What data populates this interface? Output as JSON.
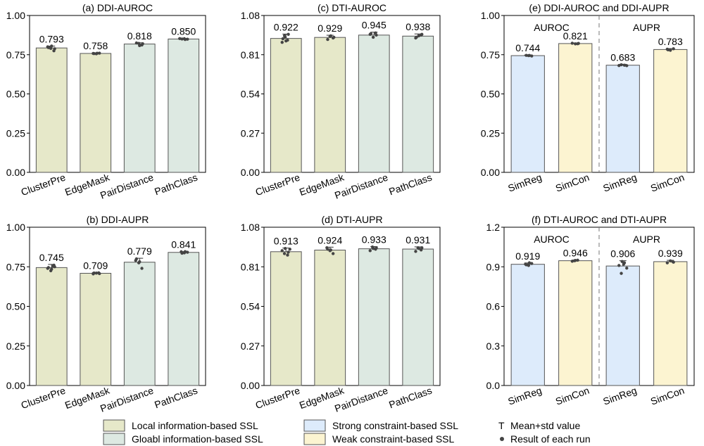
{
  "colors": {
    "local": "#e6e8c9",
    "global": "#dde9e2",
    "strong": "#ddebfb",
    "weak": "#fcf4d1",
    "bar_edge": "#555555",
    "dot": "#444444"
  },
  "chart_data": [
    {
      "id": "a",
      "type": "bar",
      "title": "(a) DDI-AUROC",
      "ylim": [
        0,
        1.0
      ],
      "yticks": [
        "0.00",
        "0.25",
        "0.50",
        "0.75",
        "1.00"
      ],
      "ytick_values": [
        0,
        0.25,
        0.5,
        0.75,
        1.0
      ],
      "categories": [
        "ClusterPre",
        "EdgeMask",
        "PairDistance",
        "PathClass"
      ],
      "values": [
        0.793,
        0.758,
        0.818,
        0.85
      ],
      "labels": [
        "0.793",
        "0.758",
        "0.818",
        "0.850"
      ],
      "std": [
        0.012,
        0.004,
        0.008,
        0.004
      ],
      "fills": [
        "local",
        "local",
        "global",
        "global"
      ],
      "runs": [
        [
          0.8,
          0.79,
          0.775,
          0.795,
          0.805,
          0.788,
          0.798
        ],
        [
          0.758,
          0.756,
          0.76,
          0.757,
          0.759
        ],
        [
          0.822,
          0.812,
          0.825,
          0.808,
          0.82
        ],
        [
          0.852,
          0.849,
          0.85,
          0.847,
          0.853
        ]
      ]
    },
    {
      "id": "b",
      "type": "bar",
      "title": "(b) DDI-AUPR",
      "ylim": [
        0,
        1.0
      ],
      "yticks": [
        "0.00",
        "0.25",
        "0.50",
        "0.75",
        "1.00"
      ],
      "ytick_values": [
        0,
        0.25,
        0.5,
        0.75,
        1.0
      ],
      "categories": [
        "ClusterPre",
        "EdgeMask",
        "PairDistance",
        "PathClass"
      ],
      "values": [
        0.745,
        0.709,
        0.779,
        0.841
      ],
      "labels": [
        "0.745",
        "0.709",
        "0.779",
        "0.841"
      ],
      "std": [
        0.02,
        0.005,
        0.025,
        0.005
      ],
      "fills": [
        "local",
        "local",
        "global",
        "global"
      ],
      "runs": [
        [
          0.755,
          0.74,
          0.725,
          0.76,
          0.745,
          0.735,
          0.75
        ],
        [
          0.712,
          0.705,
          0.71,
          0.707,
          0.711
        ],
        [
          0.79,
          0.775,
          0.74,
          0.8,
          0.782
        ],
        [
          0.845,
          0.838,
          0.842,
          0.836,
          0.846
        ]
      ]
    },
    {
      "id": "c",
      "type": "bar",
      "title": "(c) DTI-AUROC",
      "ylim": [
        0,
        1.08
      ],
      "yticks": [
        "0.00",
        "0.27",
        "0.54",
        "0.81",
        "1.08"
      ],
      "ytick_values": [
        0,
        0.27,
        0.54,
        0.81,
        1.08
      ],
      "categories": [
        "ClusterPre",
        "EdgeMask",
        "PairDistance",
        "PathClass"
      ],
      "values": [
        0.922,
        0.929,
        0.945,
        0.938
      ],
      "labels": [
        "0.922",
        "0.929",
        "0.945",
        "0.938"
      ],
      "std": [
        0.03,
        0.015,
        0.02,
        0.015
      ],
      "fills": [
        "local",
        "local",
        "global",
        "global"
      ],
      "runs": [
        [
          0.94,
          0.91,
          0.895,
          0.93,
          0.95,
          0.92,
          0.905
        ],
        [
          0.935,
          0.925,
          0.915,
          0.94,
          0.93
        ],
        [
          0.96,
          0.95,
          0.93,
          0.945,
          0.955
        ],
        [
          0.945,
          0.925,
          0.94,
          0.95,
          0.93
        ]
      ]
    },
    {
      "id": "d",
      "type": "bar",
      "title": "(d) DTI-AUPR",
      "ylim": [
        0,
        1.08
      ],
      "yticks": [
        "0.00",
        "0.27",
        "0.54",
        "0.81",
        "1.08"
      ],
      "ytick_values": [
        0,
        0.27,
        0.54,
        0.81,
        1.08
      ],
      "categories": [
        "ClusterPre",
        "EdgeMask",
        "PairDistance",
        "PathClass"
      ],
      "values": [
        0.913,
        0.924,
        0.933,
        0.931
      ],
      "labels": [
        "0.913",
        "0.924",
        "0.933",
        "0.931"
      ],
      "std": [
        0.025,
        0.02,
        0.015,
        0.015
      ],
      "fills": [
        "local",
        "local",
        "global",
        "global"
      ],
      "runs": [
        [
          0.93,
          0.9,
          0.89,
          0.92,
          0.935,
          0.91
        ],
        [
          0.94,
          0.92,
          0.9,
          0.93,
          0.925
        ],
        [
          0.945,
          0.93,
          0.92,
          0.935,
          0.94
        ],
        [
          0.94,
          0.925,
          0.915,
          0.935,
          0.94
        ]
      ]
    },
    {
      "id": "e",
      "type": "bar",
      "title": "(e) DDI-AUROC and DDI-AUPR",
      "ylim": [
        0,
        1.0
      ],
      "yticks": [
        "0.00",
        "0.25",
        "0.50",
        "0.75",
        "1.00"
      ],
      "ytick_values": [
        0,
        0.25,
        0.5,
        0.75,
        1.0
      ],
      "categories": [
        "SimReg",
        "SimCon",
        "SimReg",
        "SimCon"
      ],
      "group_labels": [
        "AUROC",
        "AUPR"
      ],
      "values": [
        0.744,
        0.821,
        0.683,
        0.783
      ],
      "labels": [
        "0.744",
        "0.821",
        "0.683",
        "0.783"
      ],
      "std": [
        0.004,
        0.004,
        0.006,
        0.006
      ],
      "fills": [
        "strong",
        "weak",
        "strong",
        "weak"
      ],
      "runs": [
        [
          0.744,
          0.742,
          0.746,
          0.745
        ],
        [
          0.82,
          0.823,
          0.819,
          0.822
        ],
        [
          0.68,
          0.686,
          0.683,
          0.681
        ],
        [
          0.785,
          0.778,
          0.788,
          0.781
        ]
      ]
    },
    {
      "id": "f",
      "type": "bar",
      "title": "(f) DTI-AUROC and DTI-AUPR",
      "ylim": [
        0,
        1.2
      ],
      "yticks": [
        "0.0",
        "0.3",
        "0.6",
        "0.9",
        "1.2"
      ],
      "ytick_values": [
        0,
        0.3,
        0.6,
        0.9,
        1.2
      ],
      "categories": [
        "SimReg",
        "SimCon",
        "SimReg",
        "SimCon"
      ],
      "group_labels": [
        "AUROC",
        "AUPR"
      ],
      "values": [
        0.919,
        0.946,
        0.906,
        0.939
      ],
      "labels": [
        "0.919",
        "0.946",
        "0.906",
        "0.939"
      ],
      "std": [
        0.01,
        0.005,
        0.04,
        0.01
      ],
      "fills": [
        "strong",
        "weak",
        "strong",
        "weak"
      ],
      "runs": [
        [
          0.92,
          0.91,
          0.925,
          0.915,
          0.93
        ],
        [
          0.946,
          0.95,
          0.942,
          0.948
        ],
        [
          0.92,
          0.89,
          0.85,
          0.93,
          0.91,
          0.94
        ],
        [
          0.94,
          0.93,
          0.945,
          0.935
        ]
      ]
    }
  ],
  "legend": {
    "local": "Local information-based SSL",
    "global": "Gloabl information-based SSL",
    "strong": "Strong constraint-based SSL",
    "weak": "Weak constraint-based SSL",
    "errorbar_symbol": "T",
    "errorbar": "Mean+std value",
    "run": "Result of each run"
  }
}
